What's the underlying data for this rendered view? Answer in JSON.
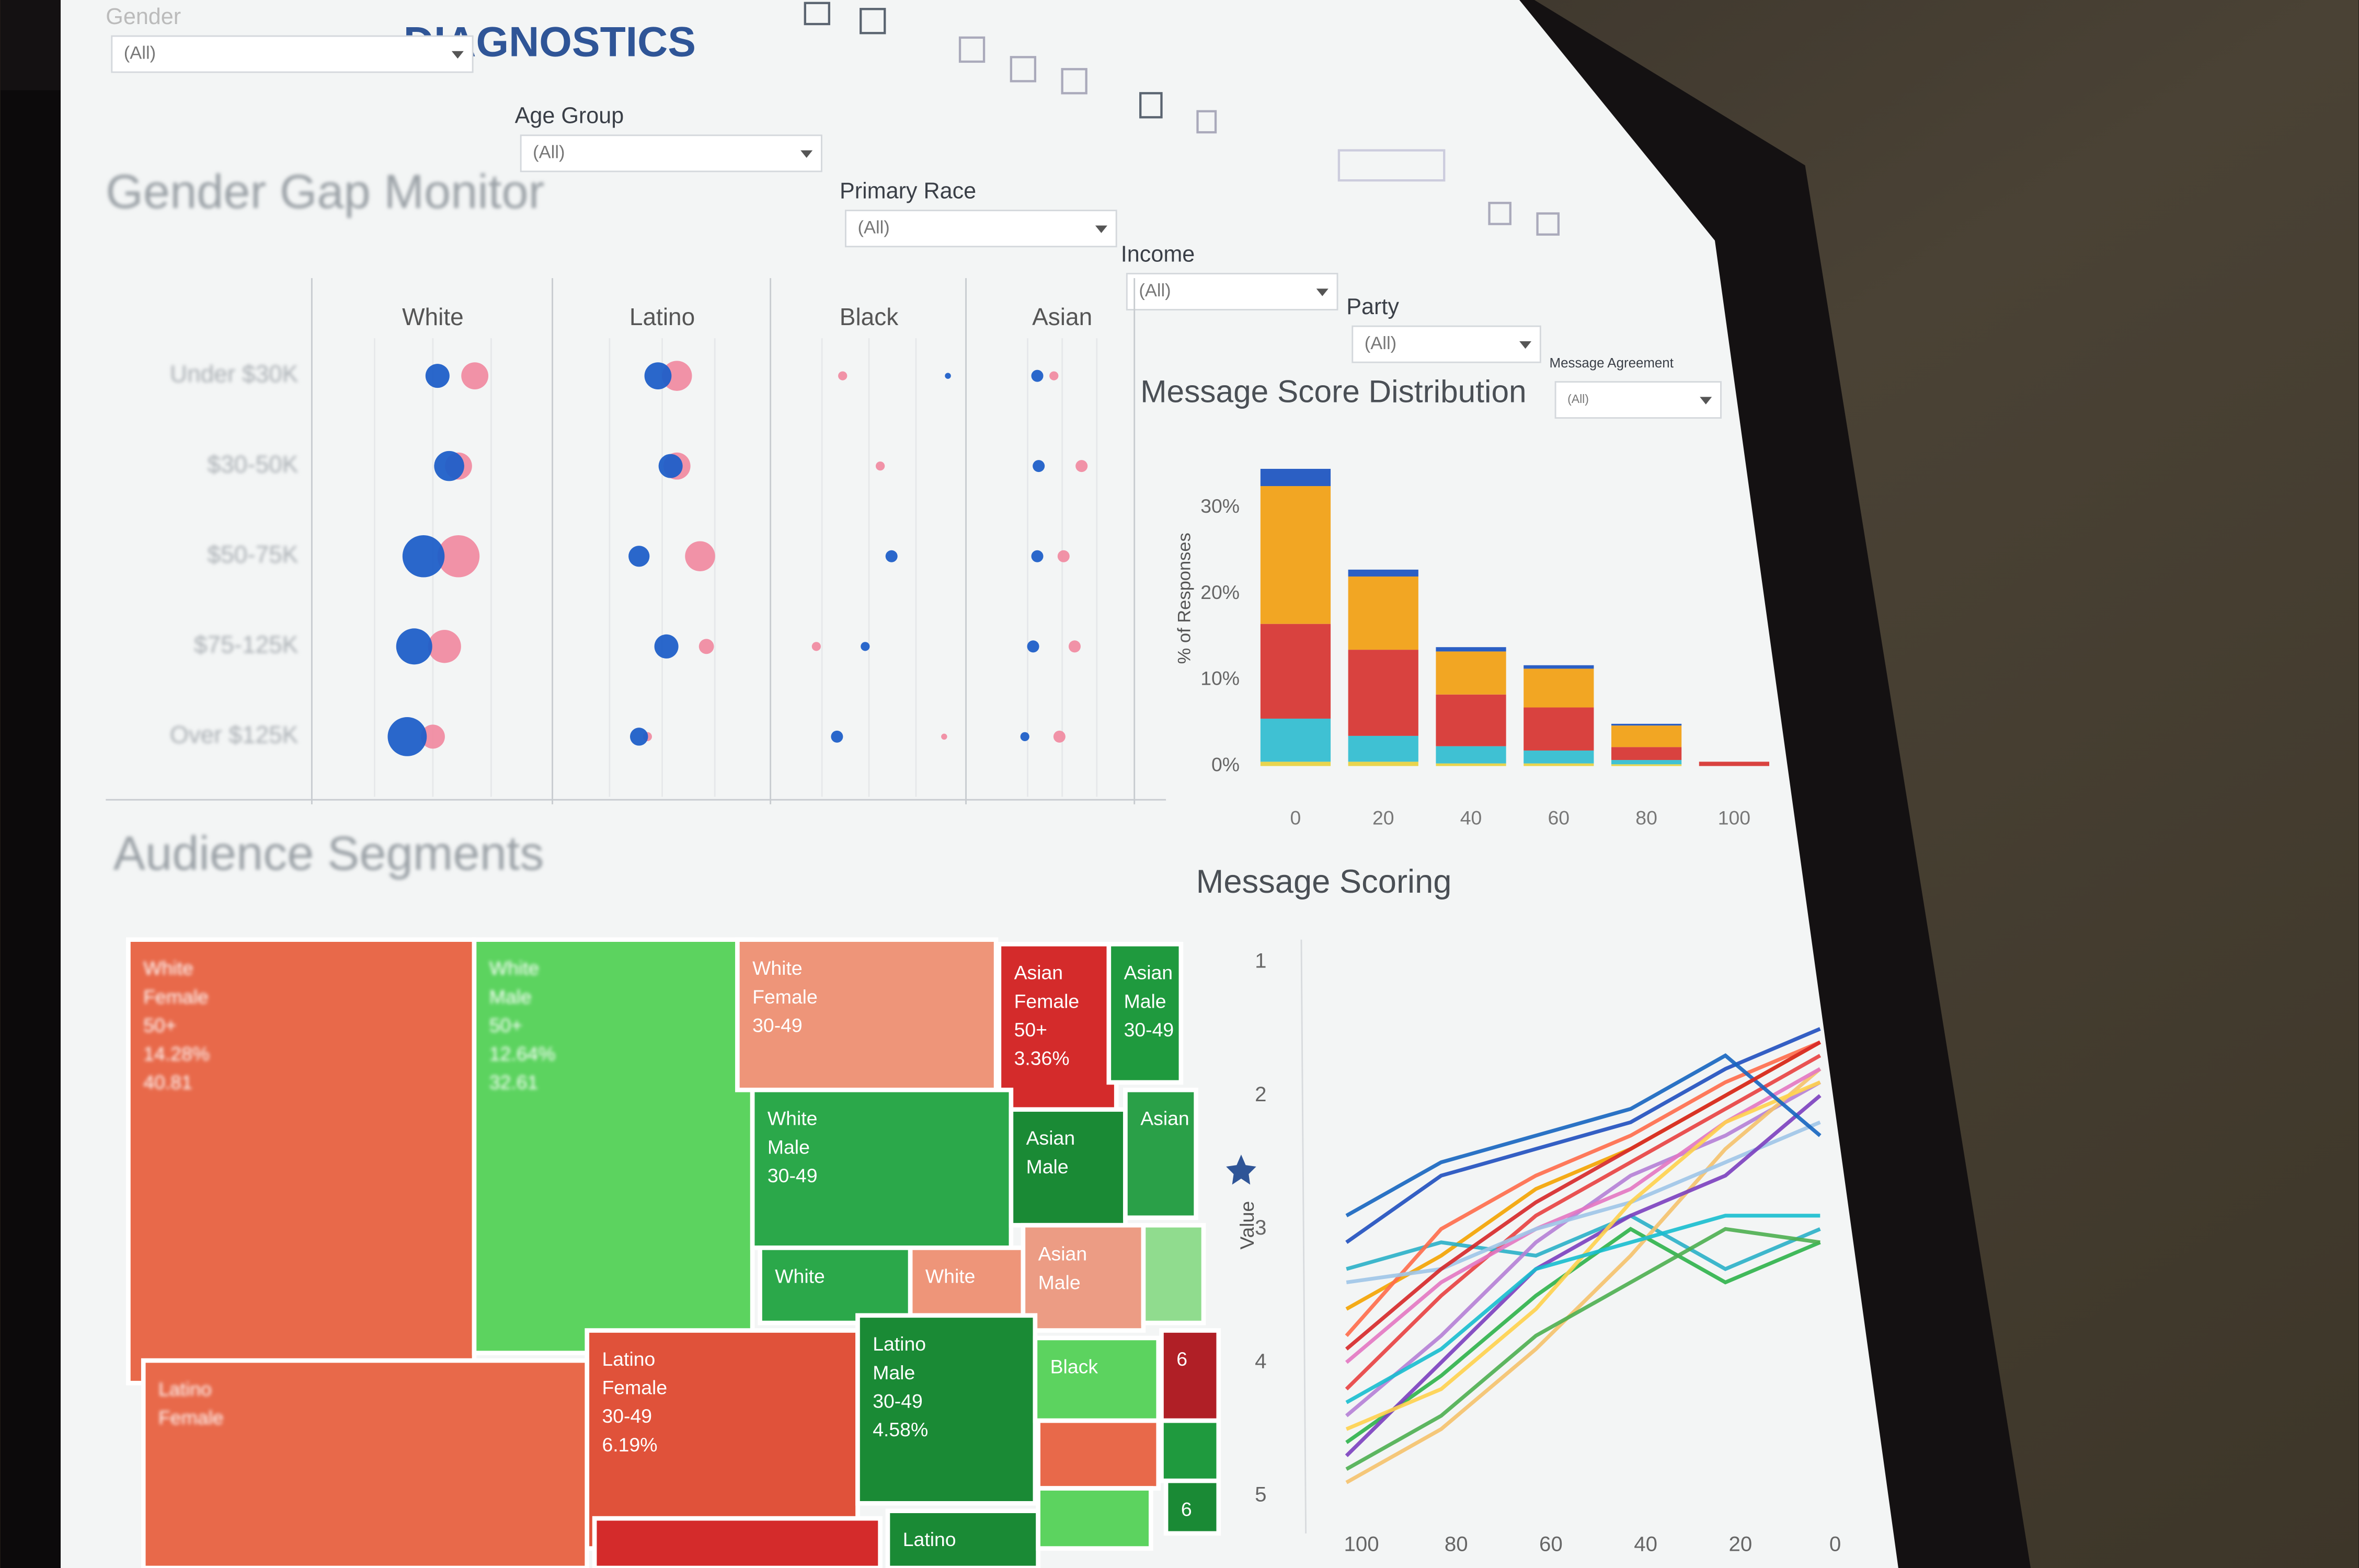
{
  "header": {
    "title": "DIAGNOSTICS"
  },
  "filters": [
    {
      "label": "Gender",
      "value": "(All)"
    },
    {
      "label": "Age Group",
      "value": "(All)"
    },
    {
      "label": "Primary Race",
      "value": "(All)"
    },
    {
      "label": "Income",
      "value": "(All)"
    },
    {
      "label": "Party",
      "value": "(All)"
    },
    {
      "label": "Message Agreement",
      "value": "(All)"
    }
  ],
  "chart_data": [
    {
      "type": "dot",
      "title": "Gender Gap Monitor",
      "columns": [
        "White",
        "Latino",
        "Black",
        "Asian"
      ],
      "rows": [
        "Under $30K",
        "$30-50K",
        "$50-75K",
        "$75-125K",
        "Over $125K"
      ],
      "series": [
        {
          "color": "#f08ca2",
          "values": [
            [
              68,
              57,
              36,
              44
            ],
            [
              61,
              57,
              56,
              64
            ],
            [
              61,
              68,
              null,
              51
            ],
            [
              55,
              71,
              22,
              59
            ],
            [
              50,
              43,
              90,
              48
            ]
          ],
          "sizes": [
            [
              9,
              10,
              3,
              3
            ],
            [
              9,
              9,
              3,
              4
            ],
            [
              14,
              10,
              null,
              4
            ],
            [
              11,
              5,
              3,
              4
            ],
            [
              8,
              3,
              2,
              4
            ]
          ]
        },
        {
          "color": "#1f5fc8",
          "values": [
            [
              52,
              48,
              92,
              32
            ],
            [
              57,
              54,
              null,
              33
            ],
            [
              46,
              39,
              62,
              32
            ],
            [
              42,
              52,
              48,
              29
            ],
            [
              39,
              39,
              33,
              23
            ]
          ],
          "sizes": [
            [
              8,
              9,
              2,
              4
            ],
            [
              10,
              8,
              null,
              4
            ],
            [
              14,
              7,
              4,
              4
            ],
            [
              12,
              8,
              3,
              4
            ],
            [
              13,
              6,
              4,
              3
            ]
          ]
        }
      ]
    },
    {
      "type": "bar",
      "stacked": true,
      "title": "Message Score Distribution",
      "y_label": "% of Responses",
      "categories": [
        0,
        20,
        40,
        60,
        80,
        100
      ],
      "ylim": [
        -2,
        35
      ],
      "yticks": [
        {
          "value": 0,
          "label": "0%"
        },
        {
          "value": 10,
          "label": "10%"
        },
        {
          "value": 20,
          "label": "20%"
        },
        {
          "value": 30,
          "label": "30%"
        }
      ],
      "series": [
        {
          "color": "#e8d44d",
          "values": [
            0.5,
            0.5,
            0.3,
            0.3,
            0.2,
            0
          ]
        },
        {
          "color": "#3fc1d3",
          "values": [
            5,
            3,
            2,
            1.5,
            0.5,
            0
          ]
        },
        {
          "color": "#d9423f",
          "values": [
            11,
            10,
            6,
            5,
            1.5,
            0.5
          ]
        },
        {
          "color": "#f2a623",
          "values": [
            16,
            8.5,
            5,
            4.5,
            2.5,
            0
          ]
        },
        {
          "color": "#2b5fc4",
          "values": [
            2,
            0.8,
            0.5,
            0.4,
            0.2,
            0
          ]
        }
      ]
    },
    {
      "type": "treemap",
      "title": "Audience Segments",
      "tiles": [
        {
          "label": [
            "White",
            "Female",
            "50+",
            "14.28%",
            "40.81"
          ],
          "color": "#e8694a"
        },
        {
          "label": [
            "White",
            "Male",
            "50+",
            "12.64%",
            "32.61"
          ],
          "color": "#5cd35f"
        },
        {
          "label": [
            "White",
            "Female",
            "30-49"
          ],
          "color": "#ee9579"
        },
        {
          "label": [
            "Asian",
            "Female",
            "50+",
            "3.36%"
          ],
          "color": "#d42b2b"
        },
        {
          "label": [
            "Asian",
            "Male",
            "30-49"
          ],
          "color": "#1f9a3e"
        },
        {
          "label": [
            "White",
            "Male",
            "30-49"
          ],
          "color": "#2ba84a"
        },
        {
          "label": [
            "Asian",
            "Male"
          ],
          "color": "#1a8a35"
        },
        {
          "label": [
            "Asian"
          ],
          "color": "#2aa048"
        },
        {
          "label": [
            "White"
          ],
          "color": "#2ba84a"
        },
        {
          "label": [
            "White"
          ],
          "color": "#ee9579"
        },
        {
          "label": [
            "Asian",
            "Male"
          ],
          "color": "#ec9c84"
        },
        {
          "color": "#90dc8e"
        },
        {
          "label": [
            "Latino",
            "Female",
            "30-49",
            "6.19%"
          ],
          "color": "#e0523a"
        },
        {
          "label": [
            "Latino",
            "Male",
            "30-49",
            "4.58%"
          ],
          "color": "#1a8a35"
        },
        {
          "label": [
            "Latino",
            "Female"
          ],
          "color": "#e8694a"
        },
        {
          "label": [
            "Black"
          ],
          "color": "#5cd35f"
        },
        {
          "label": [
            "6"
          ],
          "color": "#b01f26"
        },
        {
          "color": "#e8694a"
        },
        {
          "label": [
            "6"
          ],
          "color": "#1a8a35"
        },
        {
          "label": [
            "Latino"
          ],
          "color": "#1a8a35"
        },
        {
          "color": "#d42b2b"
        },
        {
          "color": "#5cd35f"
        },
        {
          "color": "#1f9a3e"
        }
      ]
    },
    {
      "type": "line",
      "title": "Message Scoring",
      "y_label": "Value",
      "x": [
        100,
        80,
        60,
        40,
        20,
        0
      ],
      "xlim": [
        100,
        0
      ],
      "ylim": [
        5,
        1
      ],
      "xticks": [
        100,
        80,
        60,
        40,
        20,
        0
      ],
      "yticks": [
        1,
        2,
        3,
        4,
        5
      ],
      "series": [
        {
          "color": "#1f4fbf",
          "values": [
            3.1,
            2.6,
            2.4,
            2.2,
            1.8,
            1.5
          ]
        },
        {
          "color": "#f4a300",
          "values": [
            3.6,
            3.2,
            2.7,
            2.4,
            2.0,
            1.6
          ]
        },
        {
          "color": "#e84040",
          "values": [
            4.2,
            3.5,
            2.9,
            2.5,
            2.1,
            1.7
          ]
        },
        {
          "color": "#2ab0c8",
          "values": [
            3.3,
            3.1,
            3.2,
            2.9,
            3.3,
            3.0
          ]
        },
        {
          "color": "#2db34a",
          "values": [
            4.6,
            4.1,
            3.5,
            3.0,
            3.4,
            3.1
          ]
        },
        {
          "color": "#b57fd6",
          "values": [
            4.4,
            3.8,
            3.1,
            2.6,
            2.3,
            1.9
          ]
        },
        {
          "color": "#f5c26b",
          "values": [
            4.9,
            4.5,
            3.9,
            3.2,
            2.4,
            1.8
          ]
        },
        {
          "color": "#e377c2",
          "values": [
            4.0,
            3.4,
            3.0,
            2.7,
            2.2,
            1.8
          ]
        },
        {
          "color": "#ff6b4a",
          "values": [
            3.8,
            3.0,
            2.6,
            2.3,
            1.9,
            1.6
          ]
        },
        {
          "color": "#9fc5e8",
          "values": [
            3.4,
            3.3,
            3.0,
            2.8,
            2.5,
            2.2
          ]
        },
        {
          "color": "#7b3fbf",
          "values": [
            4.7,
            4.0,
            3.3,
            2.9,
            2.6,
            2.0
          ]
        },
        {
          "color": "#ffd24d",
          "values": [
            4.5,
            4.2,
            3.6,
            2.8,
            2.2,
            1.9
          ]
        },
        {
          "color": "#4caf50",
          "values": [
            4.8,
            4.4,
            3.8,
            3.4,
            3.0,
            3.1
          ]
        },
        {
          "color": "#1565c0",
          "values": [
            2.9,
            2.5,
            2.3,
            2.1,
            1.7,
            2.3
          ]
        },
        {
          "color": "#d62728",
          "values": [
            3.9,
            3.3,
            2.8,
            2.4,
            2.0,
            1.6
          ]
        },
        {
          "color": "#17becf",
          "values": [
            4.3,
            3.9,
            3.3,
            3.1,
            2.9,
            2.9
          ]
        }
      ]
    }
  ]
}
